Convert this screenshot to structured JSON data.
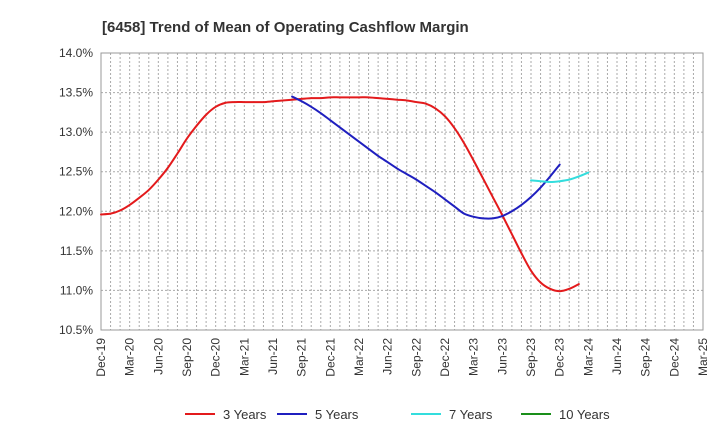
{
  "chart_data": {
    "type": "line",
    "title": "[6458]  Trend of Mean of Operating Cashflow Margin",
    "xlabel": "",
    "ylabel": "",
    "x_ticks": [
      "Dec-19",
      "Mar-20",
      "Jun-20",
      "Sep-20",
      "Dec-20",
      "Mar-21",
      "Jun-21",
      "Sep-21",
      "Dec-21",
      "Mar-22",
      "Jun-22",
      "Sep-22",
      "Dec-22",
      "Mar-23",
      "Jun-23",
      "Sep-23",
      "Dec-23",
      "Mar-24",
      "Jun-24",
      "Sep-24",
      "Dec-24",
      "Mar-25"
    ],
    "y_ticks": [
      "10.5%",
      "11.0%",
      "11.5%",
      "12.0%",
      "12.5%",
      "13.0%",
      "13.5%",
      "14.0%"
    ],
    "ylim": [
      10.5,
      14.0
    ],
    "y_unit": "%",
    "grid": true,
    "legend_position": "bottom",
    "series": [
      {
        "name": "3 Years",
        "color": "#e31a1c",
        "values": [
          [
            "Dec-19",
            11.96
          ],
          [
            "Jan-20",
            11.97
          ],
          [
            "Feb-20",
            12.01
          ],
          [
            "Mar-20",
            12.08
          ],
          [
            "Apr-20",
            12.17
          ],
          [
            "May-20",
            12.27
          ],
          [
            "Jun-20",
            12.4
          ],
          [
            "Jul-20",
            12.55
          ],
          [
            "Aug-20",
            12.73
          ],
          [
            "Sep-20",
            12.92
          ],
          [
            "Oct-20",
            13.08
          ],
          [
            "Nov-20",
            13.22
          ],
          [
            "Dec-20",
            13.32
          ],
          [
            "Jan-21",
            13.37
          ],
          [
            "Feb-21",
            13.38
          ],
          [
            "Mar-21",
            13.38
          ],
          [
            "Apr-21",
            13.38
          ],
          [
            "May-21",
            13.38
          ],
          [
            "Jun-21",
            13.39
          ],
          [
            "Jul-21",
            13.4
          ],
          [
            "Aug-21",
            13.41
          ],
          [
            "Sep-21",
            13.42
          ],
          [
            "Oct-21",
            13.43
          ],
          [
            "Nov-21",
            13.43
          ],
          [
            "Dec-21",
            13.44
          ],
          [
            "Jan-22",
            13.44
          ],
          [
            "Feb-22",
            13.44
          ],
          [
            "Mar-22",
            13.44
          ],
          [
            "Apr-22",
            13.44
          ],
          [
            "May-22",
            13.43
          ],
          [
            "Jun-22",
            13.42
          ],
          [
            "Jul-22",
            13.41
          ],
          [
            "Aug-22",
            13.4
          ],
          [
            "Sep-22",
            13.38
          ],
          [
            "Oct-22",
            13.36
          ],
          [
            "Nov-22",
            13.3
          ],
          [
            "Dec-22",
            13.2
          ],
          [
            "Jan-23",
            13.05
          ],
          [
            "Feb-23",
            12.86
          ],
          [
            "Mar-23",
            12.64
          ],
          [
            "Apr-23",
            12.41
          ],
          [
            "May-23",
            12.18
          ],
          [
            "Jun-23",
            11.95
          ],
          [
            "Jul-23",
            11.71
          ],
          [
            "Aug-23",
            11.47
          ],
          [
            "Sep-23",
            11.25
          ],
          [
            "Oct-23",
            11.1
          ],
          [
            "Nov-23",
            11.02
          ],
          [
            "Dec-23",
            10.99
          ],
          [
            "Jan-24",
            11.02
          ],
          [
            "Feb-24",
            11.08
          ]
        ]
      },
      {
        "name": "5 Years",
        "color": "#1f1fbf",
        "values": [
          [
            "Aug-21",
            13.45
          ],
          [
            "Sep-21",
            13.39
          ],
          [
            "Oct-21",
            13.32
          ],
          [
            "Nov-21",
            13.24
          ],
          [
            "Dec-21",
            13.15
          ],
          [
            "Jan-22",
            13.06
          ],
          [
            "Feb-22",
            12.97
          ],
          [
            "Mar-22",
            12.88
          ],
          [
            "Apr-22",
            12.79
          ],
          [
            "May-22",
            12.7
          ],
          [
            "Jun-22",
            12.62
          ],
          [
            "Jul-22",
            12.54
          ],
          [
            "Aug-22",
            12.47
          ],
          [
            "Sep-22",
            12.4
          ],
          [
            "Oct-22",
            12.32
          ],
          [
            "Nov-22",
            12.24
          ],
          [
            "Dec-22",
            12.15
          ],
          [
            "Jan-23",
            12.06
          ],
          [
            "Feb-23",
            11.97
          ],
          [
            "Mar-23",
            11.93
          ],
          [
            "Apr-23",
            11.91
          ],
          [
            "May-23",
            11.91
          ],
          [
            "Jun-23",
            11.94
          ],
          [
            "Jul-23",
            12.0
          ],
          [
            "Aug-23",
            12.08
          ],
          [
            "Sep-23",
            12.18
          ],
          [
            "Oct-23",
            12.3
          ],
          [
            "Nov-23",
            12.44
          ],
          [
            "Dec-23",
            12.59
          ]
        ]
      },
      {
        "name": "7 Years",
        "color": "#33dddd",
        "values": [
          [
            "Sep-23",
            12.39
          ],
          [
            "Oct-23",
            12.38
          ],
          [
            "Nov-23",
            12.37
          ],
          [
            "Dec-23",
            12.38
          ],
          [
            "Jan-24",
            12.4
          ],
          [
            "Feb-24",
            12.44
          ],
          [
            "Mar-24",
            12.49
          ]
        ]
      },
      {
        "name": "10 Years",
        "color": "#1a8f1a",
        "values": []
      }
    ]
  }
}
